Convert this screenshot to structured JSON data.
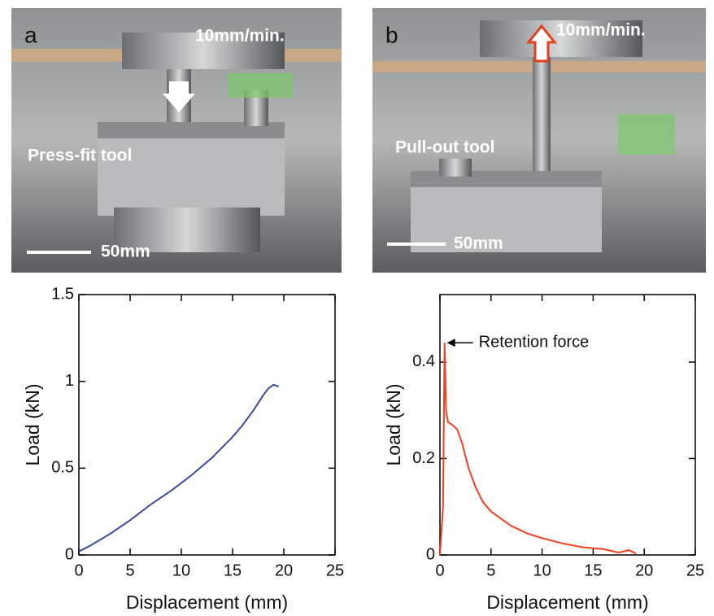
{
  "panels": [
    {
      "label": "a",
      "speed": "10mm/min.",
      "tool": "Press-fit tool",
      "scale": "50mm"
    },
    {
      "label": "b",
      "speed": "10mm/min.",
      "tool": "Pull-out tool",
      "scale": "50mm"
    }
  ],
  "chart_data": [
    {
      "type": "line",
      "xlabel": "Displacement (mm)",
      "ylabel": "Load (kN)",
      "color": "#3a4aa0",
      "x": [
        0,
        1,
        3,
        5,
        7,
        9,
        11,
        13,
        15,
        16,
        17,
        18,
        18.5,
        19,
        19.5
      ],
      "y": [
        0.02,
        0.05,
        0.12,
        0.2,
        0.29,
        0.37,
        0.46,
        0.56,
        0.68,
        0.75,
        0.83,
        0.92,
        0.96,
        0.98,
        0.97
      ],
      "xlim": [
        0,
        25
      ],
      "xticks": [
        0,
        5,
        10,
        15,
        20,
        25
      ],
      "ylim": [
        0,
        1.5
      ],
      "yticks": [
        0,
        0.5,
        1,
        1.5
      ]
    },
    {
      "type": "line",
      "xlabel": "Displacement (mm)",
      "ylabel": "Load (kN)",
      "color": "#f04020",
      "x": [
        0,
        0.3,
        0.45,
        0.6,
        0.8,
        1.2,
        1.7,
        2.2,
        2.8,
        3.5,
        4.2,
        5,
        6,
        7,
        8.5,
        10,
        12,
        14,
        16,
        17.5,
        18.5,
        19.2
      ],
      "y": [
        0,
        0.1,
        0.44,
        0.3,
        0.275,
        0.27,
        0.26,
        0.23,
        0.18,
        0.14,
        0.11,
        0.09,
        0.075,
        0.06,
        0.045,
        0.035,
        0.024,
        0.016,
        0.012,
        0.005,
        0.01,
        0.003
      ],
      "xlim": [
        0,
        25
      ],
      "xticks": [
        0,
        5,
        10,
        15,
        20,
        25
      ],
      "ylim": [
        0,
        0.54
      ],
      "yticks": [
        0,
        0.2,
        0.4
      ],
      "annotation": "Retention force",
      "annotation_x": 0.45,
      "annotation_y": 0.44
    }
  ]
}
